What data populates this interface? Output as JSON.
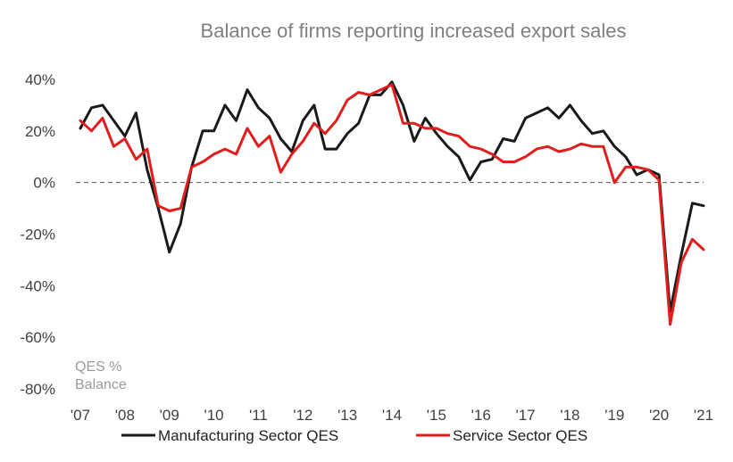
{
  "chart_data": {
    "type": "line",
    "title": "Balance of firms reporting increased export sales",
    "xlabel": "",
    "ylabel": "",
    "ylim": [
      -80,
      40
    ],
    "y_ticks": [
      40,
      20,
      0,
      -20,
      -40,
      -60,
      -80
    ],
    "y_tick_labels": [
      "40%",
      "20%",
      "0%",
      "-20%",
      "-40%",
      "-60%",
      "-80%"
    ],
    "x_tick_values": [
      2007,
      2008,
      2009,
      2010,
      2011,
      2012,
      2013,
      2014,
      2015,
      2016,
      2017,
      2018,
      2019,
      2020,
      2021
    ],
    "x_tick_labels": [
      "'07",
      "'08",
      "'09",
      "'10",
      "'11",
      "'12",
      "'13",
      "'14",
      "'15",
      "'16",
      "'17",
      "'18",
      "'19",
      "'20",
      "'21"
    ],
    "zero_line": true,
    "grid": false,
    "legend_position": "bottom",
    "annotation": [
      "QES %",
      "Balance"
    ],
    "series": [
      {
        "name": "Manufacturing Sector QES",
        "color": "#1a1a1a",
        "x": [
          2007.0,
          2007.25,
          2007.5,
          2007.75,
          2008.0,
          2008.25,
          2008.5,
          2008.75,
          2009.0,
          2009.25,
          2009.5,
          2009.75,
          2010.0,
          2010.25,
          2010.5,
          2010.75,
          2011.0,
          2011.25,
          2011.5,
          2011.75,
          2012.0,
          2012.25,
          2012.5,
          2012.75,
          2013.0,
          2013.25,
          2013.5,
          2013.75,
          2014.0,
          2014.25,
          2014.5,
          2014.75,
          2015.0,
          2015.25,
          2015.5,
          2015.75,
          2016.0,
          2016.25,
          2016.5,
          2016.75,
          2017.0,
          2017.25,
          2017.5,
          2017.75,
          2018.0,
          2018.25,
          2018.5,
          2018.75,
          2019.0,
          2019.25,
          2019.5,
          2019.75,
          2020.0,
          2020.25,
          2020.5,
          2020.75,
          2021.0
        ],
        "values": [
          21,
          29,
          30,
          24,
          18,
          27,
          5,
          -10,
          -27,
          -16,
          6,
          20,
          20,
          30,
          24,
          36,
          29,
          25,
          17,
          12,
          24,
          30,
          13,
          13,
          19,
          23,
          34,
          34,
          39,
          30,
          16,
          25,
          19,
          14,
          10,
          1,
          8,
          9,
          17,
          16,
          25,
          27,
          29,
          25,
          30,
          24,
          19,
          20,
          14,
          10,
          3,
          5,
          3,
          -50,
          -28,
          -8,
          -9
        ]
      },
      {
        "name": "Service Sector QES",
        "color": "#e01e1e",
        "x": [
          2007.0,
          2007.25,
          2007.5,
          2007.75,
          2008.0,
          2008.25,
          2008.5,
          2008.75,
          2009.0,
          2009.25,
          2009.5,
          2009.75,
          2010.0,
          2010.25,
          2010.5,
          2010.75,
          2011.0,
          2011.25,
          2011.5,
          2011.75,
          2012.0,
          2012.25,
          2012.5,
          2012.75,
          2013.0,
          2013.25,
          2013.5,
          2013.75,
          2014.0,
          2014.25,
          2014.5,
          2014.75,
          2015.0,
          2015.25,
          2015.5,
          2015.75,
          2016.0,
          2016.25,
          2016.5,
          2016.75,
          2017.0,
          2017.25,
          2017.5,
          2017.75,
          2018.0,
          2018.25,
          2018.5,
          2018.75,
          2019.0,
          2019.25,
          2019.5,
          2019.75,
          2020.0,
          2020.25,
          2020.5,
          2020.75,
          2021.0
        ],
        "values": [
          24,
          20,
          25,
          14,
          17,
          9,
          13,
          -9,
          -11,
          -10,
          6,
          8,
          11,
          13,
          11,
          21,
          14,
          18,
          4,
          11,
          16,
          23,
          19,
          24,
          32,
          35,
          34,
          36,
          38,
          23,
          23,
          21,
          21,
          19,
          18,
          14,
          13,
          11,
          8,
          8,
          10,
          13,
          14,
          12,
          13,
          15,
          14,
          14,
          0,
          6,
          6,
          5,
          1,
          -55,
          -31,
          -22,
          -26
        ]
      }
    ]
  }
}
